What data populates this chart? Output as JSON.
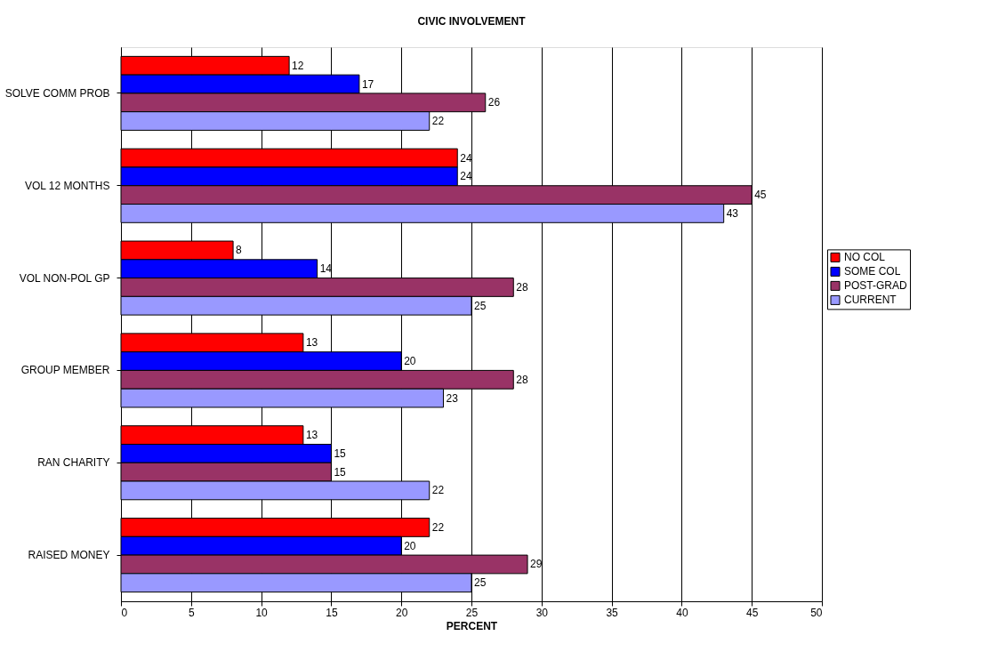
{
  "chart_data": {
    "type": "bar",
    "orientation": "horizontal",
    "title": "CIVIC INVOLVEMENT",
    "xlabel": "PERCENT",
    "categories": [
      "SOLVE COMM PROB",
      "VOL 12 MONTHS",
      "VOL NON-POL GP",
      "GROUP MEMBER",
      "RAN CHARITY",
      "RAISED MONEY"
    ],
    "series": [
      {
        "name": "NO COL",
        "color": "#ff0000",
        "values": [
          12,
          24,
          8,
          13,
          13,
          22
        ]
      },
      {
        "name": "SOME COL",
        "color": "#0000ff",
        "values": [
          17,
          24,
          14,
          20,
          15,
          20
        ]
      },
      {
        "name": "POST-GRAD",
        "color": "#993366",
        "values": [
          26,
          45,
          28,
          28,
          15,
          29
        ]
      },
      {
        "name": "CURRENT",
        "color": "#9999ff",
        "values": [
          22,
          43,
          25,
          23,
          22,
          25
        ]
      }
    ],
    "xlim": [
      0,
      50
    ],
    "xticks": [
      0,
      5,
      10,
      15,
      20,
      25,
      30,
      35,
      40,
      45,
      50
    ],
    "grid": "x",
    "legend": "right",
    "data_labels": true
  }
}
